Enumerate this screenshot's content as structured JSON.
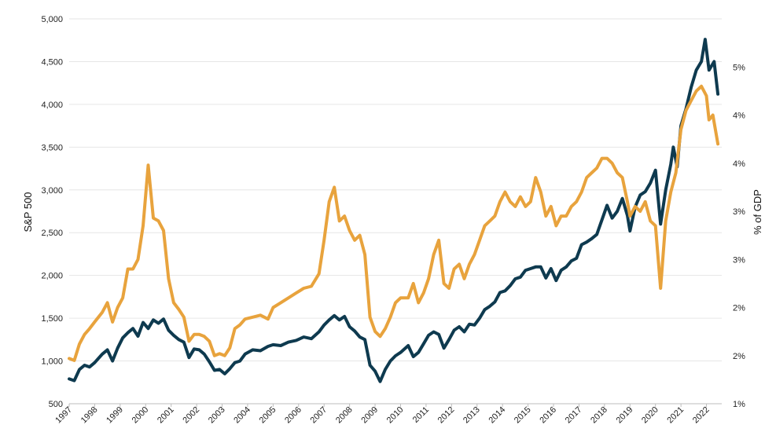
{
  "chart_data": {
    "type": "line",
    "title": "",
    "xlabel": "",
    "ylabel": "S&P 500",
    "y2label": "% of GDP",
    "ylim": [
      500,
      5000
    ],
    "y2lim": [
      1,
      5
    ],
    "xlim": [
      1997,
      2022.6
    ],
    "grid": true,
    "yticks": [
      "500",
      "1,000",
      "1,500",
      "2,000",
      "2,500",
      "3,000",
      "3,500",
      "4,000",
      "4,500",
      "5,000"
    ],
    "yticks_values": [
      500,
      1000,
      1500,
      2000,
      2500,
      3000,
      3500,
      4000,
      4500,
      5000
    ],
    "y2ticks": [
      "1%",
      "2%",
      "2%",
      "3%",
      "3%",
      "4%",
      "4%",
      "5%"
    ],
    "y2ticks_values": [
      1,
      1.5,
      2,
      2.5,
      3,
      3.5,
      4,
      4.5
    ],
    "xticks": [
      "1997",
      "1998",
      "1999",
      "2000",
      "2001",
      "2002",
      "2003",
      "2004",
      "2005",
      "2006",
      "2007",
      "2008",
      "2009",
      "2010",
      "2011",
      "2012",
      "2013",
      "2014",
      "2015",
      "2016",
      "2017",
      "2018",
      "2019",
      "2020",
      "2021",
      "2022"
    ],
    "xticks_values": [
      1997,
      1998,
      1999,
      2000,
      2001,
      2002,
      2003,
      2004,
      2005,
      2006,
      2007,
      2008,
      2009,
      2010,
      2011,
      2012,
      2013,
      2014,
      2015,
      2016,
      2017,
      2018,
      2019,
      2020,
      2021,
      2022
    ],
    "series": [
      {
        "name": "S&P 500",
        "axis": "left",
        "color": "#0e3a4f",
        "points": [
          [
            1997.0,
            790
          ],
          [
            1997.2,
            770
          ],
          [
            1997.4,
            900
          ],
          [
            1997.6,
            950
          ],
          [
            1997.8,
            930
          ],
          [
            1998.0,
            980
          ],
          [
            1998.3,
            1080
          ],
          [
            1998.5,
            1130
          ],
          [
            1998.7,
            1000
          ],
          [
            1998.9,
            1150
          ],
          [
            1999.1,
            1270
          ],
          [
            1999.3,
            1330
          ],
          [
            1999.5,
            1380
          ],
          [
            1999.7,
            1290
          ],
          [
            1999.9,
            1450
          ],
          [
            2000.1,
            1380
          ],
          [
            2000.3,
            1480
          ],
          [
            2000.5,
            1440
          ],
          [
            2000.7,
            1490
          ],
          [
            2000.9,
            1360
          ],
          [
            2001.1,
            1300
          ],
          [
            2001.3,
            1250
          ],
          [
            2001.5,
            1220
          ],
          [
            2001.7,
            1040
          ],
          [
            2001.9,
            1140
          ],
          [
            2002.1,
            1130
          ],
          [
            2002.3,
            1080
          ],
          [
            2002.5,
            990
          ],
          [
            2002.7,
            890
          ],
          [
            2002.9,
            900
          ],
          [
            2003.1,
            850
          ],
          [
            2003.3,
            910
          ],
          [
            2003.5,
            980
          ],
          [
            2003.7,
            1000
          ],
          [
            2003.9,
            1080
          ],
          [
            2004.2,
            1130
          ],
          [
            2004.5,
            1120
          ],
          [
            2004.8,
            1170
          ],
          [
            2005.0,
            1190
          ],
          [
            2005.3,
            1180
          ],
          [
            2005.6,
            1220
          ],
          [
            2005.9,
            1240
          ],
          [
            2006.2,
            1280
          ],
          [
            2006.5,
            1260
          ],
          [
            2006.8,
            1340
          ],
          [
            2007.0,
            1420
          ],
          [
            2007.2,
            1480
          ],
          [
            2007.4,
            1530
          ],
          [
            2007.6,
            1480
          ],
          [
            2007.8,
            1520
          ],
          [
            2008.0,
            1400
          ],
          [
            2008.2,
            1350
          ],
          [
            2008.4,
            1280
          ],
          [
            2008.6,
            1250
          ],
          [
            2008.8,
            950
          ],
          [
            2009.0,
            880
          ],
          [
            2009.2,
            760
          ],
          [
            2009.4,
            900
          ],
          [
            2009.6,
            1000
          ],
          [
            2009.8,
            1060
          ],
          [
            2010.0,
            1100
          ],
          [
            2010.3,
            1180
          ],
          [
            2010.5,
            1050
          ],
          [
            2010.7,
            1100
          ],
          [
            2010.9,
            1200
          ],
          [
            2011.1,
            1300
          ],
          [
            2011.3,
            1340
          ],
          [
            2011.5,
            1310
          ],
          [
            2011.7,
            1150
          ],
          [
            2011.9,
            1250
          ],
          [
            2012.1,
            1360
          ],
          [
            2012.3,
            1400
          ],
          [
            2012.5,
            1340
          ],
          [
            2012.7,
            1430
          ],
          [
            2012.9,
            1420
          ],
          [
            2013.1,
            1500
          ],
          [
            2013.3,
            1600
          ],
          [
            2013.5,
            1640
          ],
          [
            2013.7,
            1690
          ],
          [
            2013.9,
            1800
          ],
          [
            2014.1,
            1820
          ],
          [
            2014.3,
            1880
          ],
          [
            2014.5,
            1960
          ],
          [
            2014.7,
            1980
          ],
          [
            2014.9,
            2060
          ],
          [
            2015.1,
            2080
          ],
          [
            2015.3,
            2100
          ],
          [
            2015.5,
            2100
          ],
          [
            2015.7,
            1970
          ],
          [
            2015.9,
            2080
          ],
          [
            2016.1,
            1940
          ],
          [
            2016.3,
            2060
          ],
          [
            2016.5,
            2100
          ],
          [
            2016.7,
            2170
          ],
          [
            2016.9,
            2200
          ],
          [
            2017.1,
            2360
          ],
          [
            2017.3,
            2390
          ],
          [
            2017.5,
            2430
          ],
          [
            2017.7,
            2480
          ],
          [
            2017.9,
            2650
          ],
          [
            2018.1,
            2820
          ],
          [
            2018.3,
            2670
          ],
          [
            2018.5,
            2750
          ],
          [
            2018.7,
            2900
          ],
          [
            2018.9,
            2700
          ],
          [
            2019.0,
            2520
          ],
          [
            2019.2,
            2800
          ],
          [
            2019.4,
            2940
          ],
          [
            2019.6,
            2980
          ],
          [
            2019.8,
            3080
          ],
          [
            2020.0,
            3230
          ],
          [
            2020.2,
            2600
          ],
          [
            2020.4,
            3000
          ],
          [
            2020.6,
            3300
          ],
          [
            2020.7,
            3500
          ],
          [
            2020.85,
            3270
          ],
          [
            2021.0,
            3750
          ],
          [
            2021.2,
            3950
          ],
          [
            2021.4,
            4200
          ],
          [
            2021.6,
            4400
          ],
          [
            2021.8,
            4500
          ],
          [
            2021.95,
            4760
          ],
          [
            2022.1,
            4400
          ],
          [
            2022.3,
            4500
          ],
          [
            2022.45,
            4120
          ]
        ]
      },
      {
        "name": "% of GDP",
        "axis": "right",
        "color": "#e8a33d",
        "points": [
          [
            1997.0,
            1.47
          ],
          [
            1997.2,
            1.45
          ],
          [
            1997.4,
            1.62
          ],
          [
            1997.6,
            1.72
          ],
          [
            1997.8,
            1.78
          ],
          [
            1998.0,
            1.85
          ],
          [
            1998.3,
            1.95
          ],
          [
            1998.5,
            2.05
          ],
          [
            1998.7,
            1.85
          ],
          [
            1998.9,
            2.0
          ],
          [
            1999.1,
            2.1
          ],
          [
            1999.3,
            2.4
          ],
          [
            1999.5,
            2.4
          ],
          [
            1999.7,
            2.5
          ],
          [
            1999.9,
            2.85
          ],
          [
            2000.1,
            3.48
          ],
          [
            2000.3,
            2.93
          ],
          [
            2000.5,
            2.9
          ],
          [
            2000.7,
            2.8
          ],
          [
            2000.9,
            2.3
          ],
          [
            2001.1,
            2.05
          ],
          [
            2001.3,
            1.98
          ],
          [
            2001.5,
            1.9
          ],
          [
            2001.7,
            1.65
          ],
          [
            2001.9,
            1.72
          ],
          [
            2002.1,
            1.72
          ],
          [
            2002.3,
            1.7
          ],
          [
            2002.5,
            1.65
          ],
          [
            2002.7,
            1.5
          ],
          [
            2002.9,
            1.52
          ],
          [
            2003.1,
            1.5
          ],
          [
            2003.3,
            1.58
          ],
          [
            2003.5,
            1.78
          ],
          [
            2003.7,
            1.82
          ],
          [
            2003.9,
            1.88
          ],
          [
            2004.2,
            1.9
          ],
          [
            2004.5,
            1.92
          ],
          [
            2004.8,
            1.88
          ],
          [
            2005.0,
            2.0
          ],
          [
            2005.3,
            2.05
          ],
          [
            2005.6,
            2.1
          ],
          [
            2005.9,
            2.15
          ],
          [
            2006.2,
            2.2
          ],
          [
            2006.5,
            2.22
          ],
          [
            2006.8,
            2.35
          ],
          [
            2007.0,
            2.7
          ],
          [
            2007.2,
            3.1
          ],
          [
            2007.4,
            3.25
          ],
          [
            2007.6,
            2.9
          ],
          [
            2007.8,
            2.95
          ],
          [
            2008.0,
            2.8
          ],
          [
            2008.2,
            2.7
          ],
          [
            2008.4,
            2.75
          ],
          [
            2008.6,
            2.55
          ],
          [
            2008.8,
            1.9
          ],
          [
            2009.0,
            1.75
          ],
          [
            2009.2,
            1.7
          ],
          [
            2009.4,
            1.78
          ],
          [
            2009.6,
            1.9
          ],
          [
            2009.8,
            2.05
          ],
          [
            2010.0,
            2.1
          ],
          [
            2010.3,
            2.1
          ],
          [
            2010.5,
            2.25
          ],
          [
            2010.7,
            2.05
          ],
          [
            2010.9,
            2.15
          ],
          [
            2011.1,
            2.3
          ],
          [
            2011.3,
            2.55
          ],
          [
            2011.5,
            2.7
          ],
          [
            2011.7,
            2.25
          ],
          [
            2011.9,
            2.2
          ],
          [
            2012.1,
            2.4
          ],
          [
            2012.3,
            2.45
          ],
          [
            2012.5,
            2.3
          ],
          [
            2012.7,
            2.45
          ],
          [
            2012.9,
            2.55
          ],
          [
            2013.1,
            2.7
          ],
          [
            2013.3,
            2.85
          ],
          [
            2013.5,
            2.9
          ],
          [
            2013.7,
            2.95
          ],
          [
            2013.9,
            3.1
          ],
          [
            2014.1,
            3.2
          ],
          [
            2014.3,
            3.1
          ],
          [
            2014.5,
            3.05
          ],
          [
            2014.7,
            3.15
          ],
          [
            2014.9,
            3.05
          ],
          [
            2015.1,
            3.1
          ],
          [
            2015.3,
            3.35
          ],
          [
            2015.5,
            3.2
          ],
          [
            2015.7,
            2.95
          ],
          [
            2015.9,
            3.05
          ],
          [
            2016.1,
            2.85
          ],
          [
            2016.3,
            2.95
          ],
          [
            2016.5,
            2.95
          ],
          [
            2016.7,
            3.05
          ],
          [
            2016.9,
            3.1
          ],
          [
            2017.1,
            3.2
          ],
          [
            2017.3,
            3.35
          ],
          [
            2017.5,
            3.4
          ],
          [
            2017.7,
            3.45
          ],
          [
            2017.9,
            3.55
          ],
          [
            2018.1,
            3.55
          ],
          [
            2018.3,
            3.5
          ],
          [
            2018.5,
            3.4
          ],
          [
            2018.7,
            3.35
          ],
          [
            2018.9,
            3.1
          ],
          [
            2019.0,
            2.95
          ],
          [
            2019.2,
            3.05
          ],
          [
            2019.4,
            3.0
          ],
          [
            2019.6,
            3.1
          ],
          [
            2019.8,
            2.9
          ],
          [
            2020.0,
            2.85
          ],
          [
            2020.2,
            2.2
          ],
          [
            2020.4,
            2.9
          ],
          [
            2020.6,
            3.2
          ],
          [
            2020.8,
            3.4
          ],
          [
            2021.0,
            3.85
          ],
          [
            2021.2,
            4.05
          ],
          [
            2021.4,
            4.15
          ],
          [
            2021.6,
            4.25
          ],
          [
            2021.8,
            4.3
          ],
          [
            2022.0,
            4.2
          ],
          [
            2022.1,
            3.95
          ],
          [
            2022.25,
            4.0
          ],
          [
            2022.45,
            3.7
          ]
        ]
      }
    ]
  }
}
